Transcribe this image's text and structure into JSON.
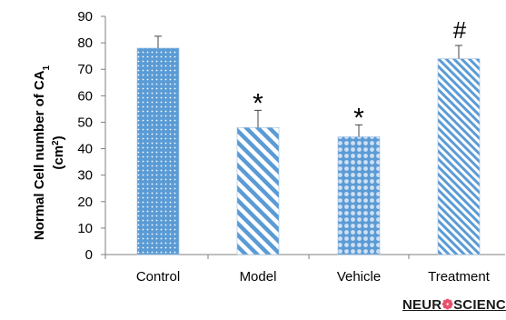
{
  "chart_data": {
    "type": "bar",
    "categories": [
      "Control",
      "Model",
      "Vehicle",
      "Treatment"
    ],
    "values": [
      78,
      48,
      44.5,
      74
    ],
    "errors": [
      4.5,
      6.5,
      4.5,
      5
    ],
    "annotations": [
      "",
      "*",
      "*",
      "#"
    ],
    "ylabel_line1": "Normal Cell number of CA",
    "ylabel_line1_sub": "1",
    "ylabel_line2": "(cm",
    "ylabel_line2_sup": "2",
    "ylabel_line2_end": ")",
    "ylim": [
      0,
      90
    ],
    "yticks": [
      0,
      10,
      20,
      30,
      40,
      50,
      60,
      70,
      80,
      90
    ],
    "grid": false,
    "colors": {
      "bar": "#5b9bd5",
      "bar_light": "#ffffff"
    }
  },
  "watermark": {
    "logo_text": "NEUR SCIENCE"
  }
}
